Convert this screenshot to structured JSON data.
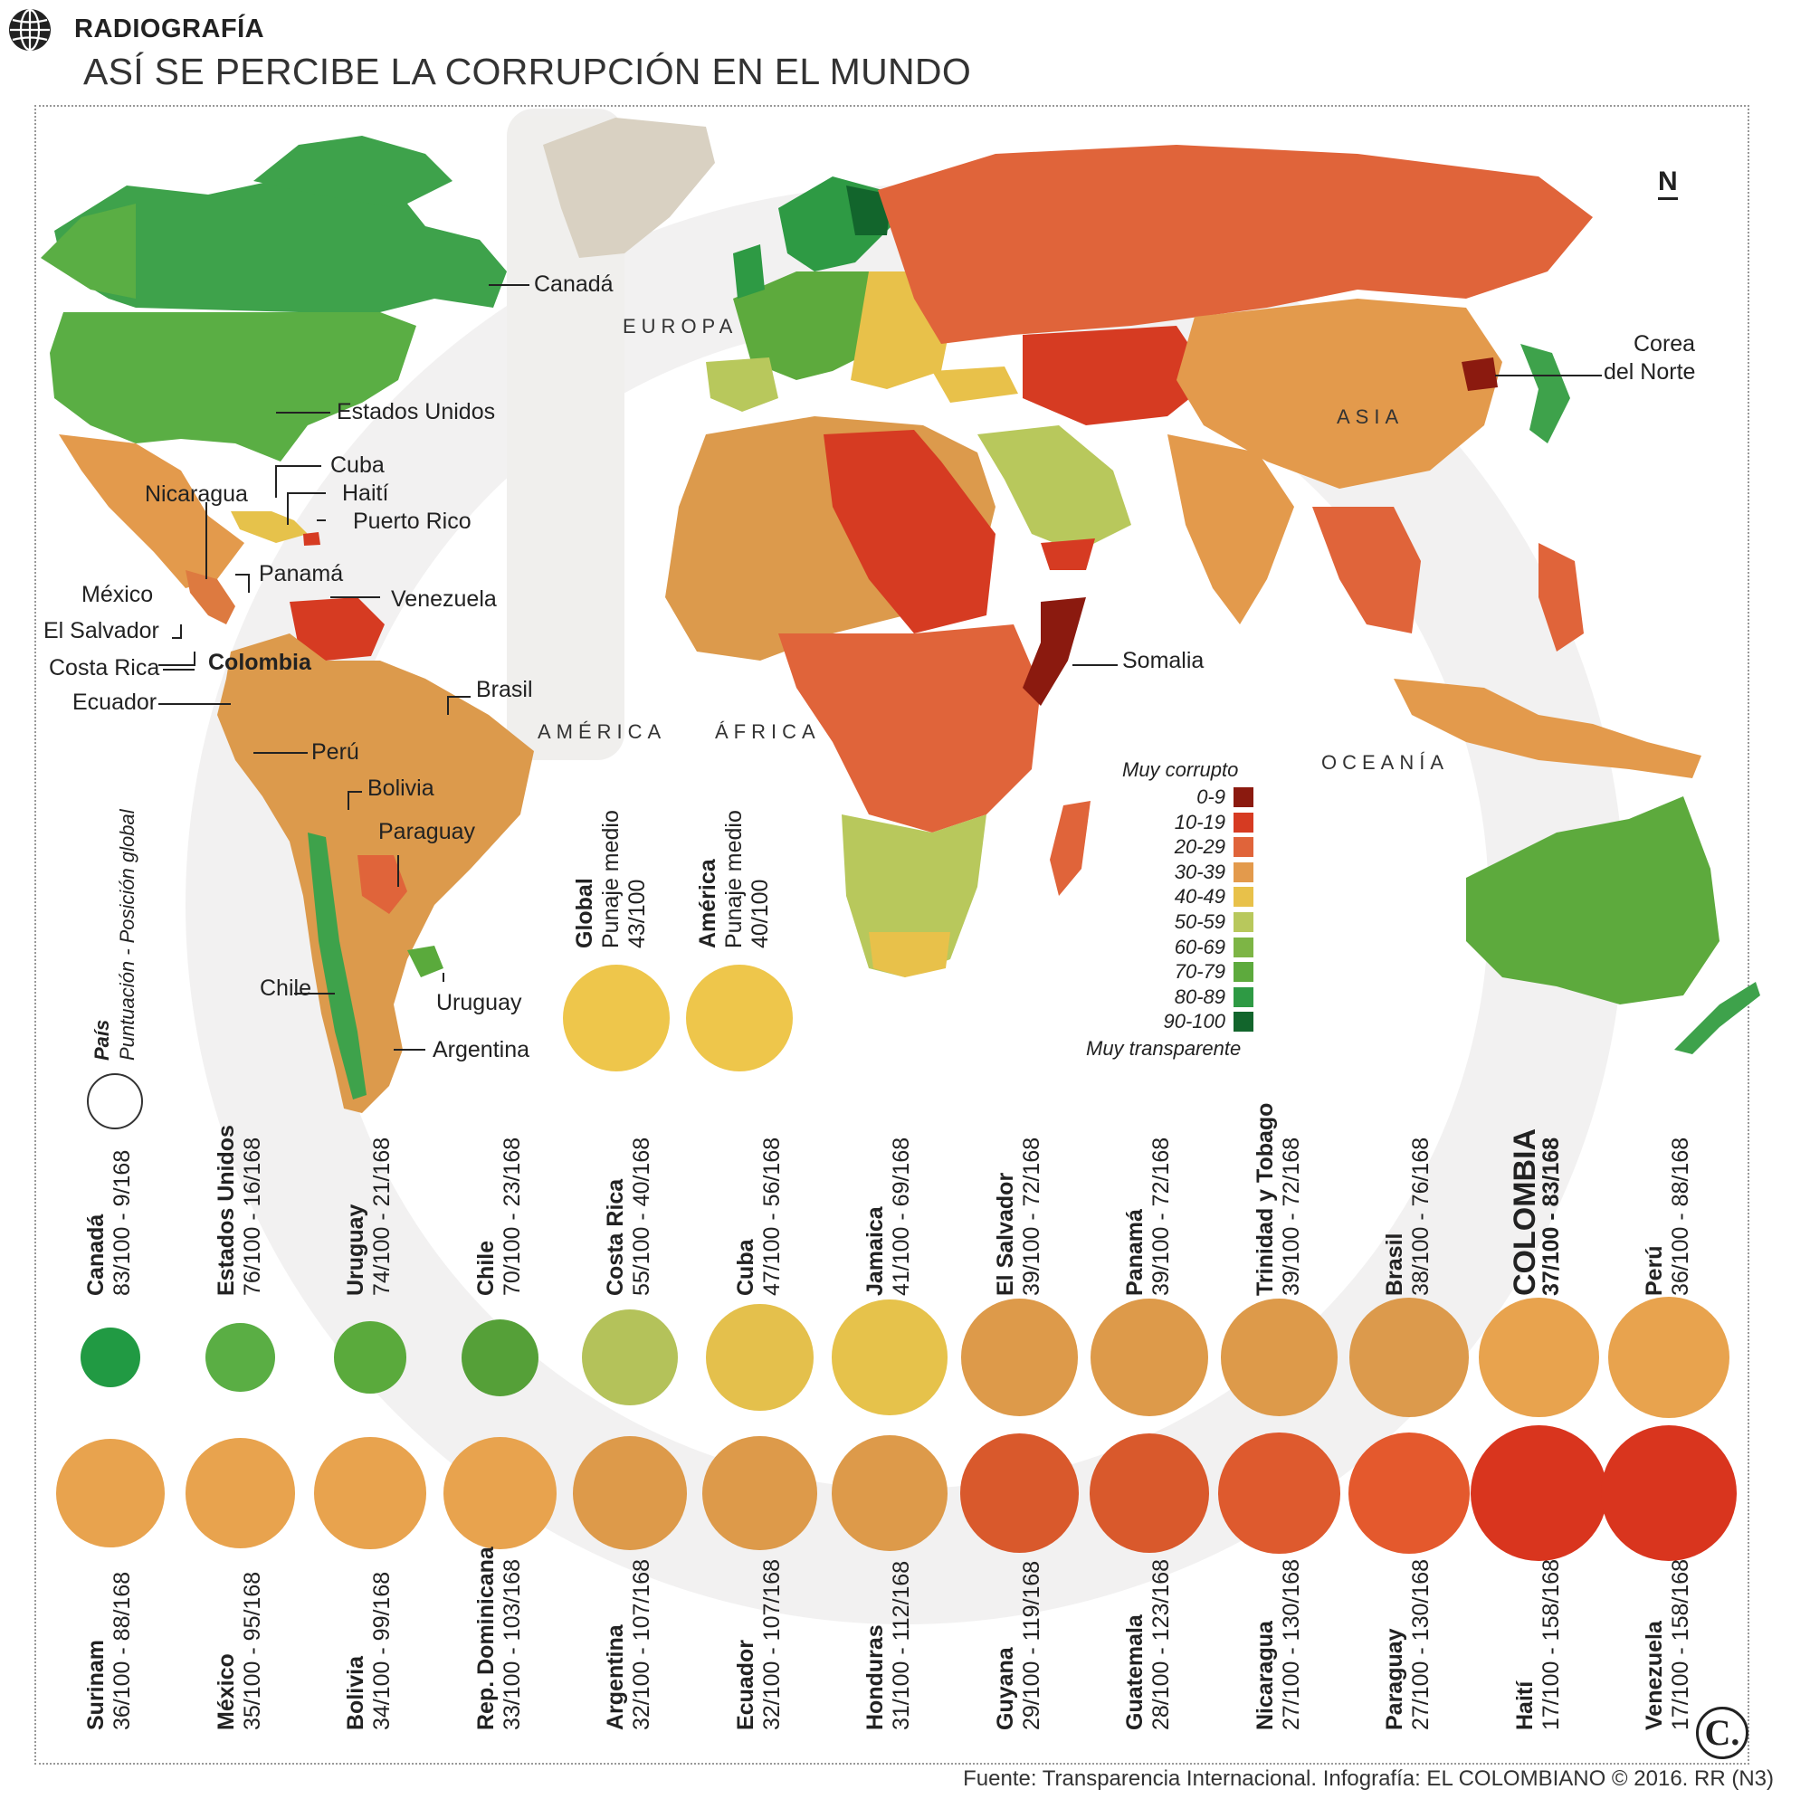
{
  "header": {
    "kicker": "RADIOGRAFÍA",
    "title": "ASÍ SE PERCIBE LA CORRUPCIÓN EN EL MUNDO"
  },
  "north": "N",
  "continents": {
    "europa": "EUROPA",
    "asia": "ASIA",
    "america": "AMÉRICA",
    "africa": "ÁFRICA",
    "oceania": "OCEANÍA"
  },
  "map_labels": {
    "canada": "Canadá",
    "usa": "Estados Unidos",
    "cuba": "Cuba",
    "haiti": "Haití",
    "puerto_rico": "Puerto Rico",
    "nicaragua": "Nicaragua",
    "mexico": "México",
    "panama": "Panamá",
    "venezuela": "Venezuela",
    "el_salvador": "El Salvador",
    "costa_rica": "Costa Rica",
    "colombia": "Colombia",
    "ecuador": "Ecuador",
    "brasil": "Brasil",
    "peru": "Perú",
    "bolivia": "Bolivia",
    "paraguay": "Paraguay",
    "chile": "Chile",
    "uruguay": "Uruguay",
    "argentina": "Argentina",
    "somalia": "Somalia",
    "corea_1": "Corea",
    "corea_2": "del Norte"
  },
  "legend": {
    "top": "Muy corrupto",
    "bottom": "Muy transparente",
    "items": [
      {
        "range": "0-9",
        "color": "#8b1a0f"
      },
      {
        "range": "10-19",
        "color": "#d63b22"
      },
      {
        "range": "20-29",
        "color": "#e0643a"
      },
      {
        "range": "30-39",
        "color": "#e39a4c"
      },
      {
        "range": "40-49",
        "color": "#e8c14a"
      },
      {
        "range": "50-59",
        "color": "#b8c85c"
      },
      {
        "range": "60-69",
        "color": "#7db545"
      },
      {
        "range": "70-79",
        "color": "#5daa3d"
      },
      {
        "range": "80-89",
        "color": "#2e9a44"
      },
      {
        "range": "90-100",
        "color": "#12652c"
      }
    ]
  },
  "key": {
    "country": "País",
    "detail": "Puntuación - Posición global"
  },
  "averages": [
    {
      "name": "Global",
      "label": "Punaje medio",
      "value": "43/100",
      "color": "#eec64b"
    },
    {
      "name": "América",
      "label": "Punaje medio",
      "value": "40/100",
      "color": "#eec64b"
    }
  ],
  "top_row": [
    {
      "name": "Canadá",
      "detail": "83/100 - 9/168",
      "score": 83,
      "color": "#219a43"
    },
    {
      "name": "Estados Unidos",
      "detail": "76/100 - 16/168",
      "score": 76,
      "color": "#5aae44"
    },
    {
      "name": "Uruguay",
      "detail": "74/100 - 21/168",
      "score": 74,
      "color": "#5aaa3c"
    },
    {
      "name": "Chile",
      "detail": "70/100 - 23/168",
      "score": 70,
      "color": "#55a038"
    },
    {
      "name": "Costa Rica",
      "detail": "55/100 - 40/168",
      "score": 55,
      "color": "#b4c25a"
    },
    {
      "name": "Cuba",
      "detail": "47/100 - 56/168",
      "score": 47,
      "color": "#e4c04c"
    },
    {
      "name": "Jamaica",
      "detail": "41/100 - 69/168",
      "score": 41,
      "color": "#e6c24b"
    },
    {
      "name": "El Salvador",
      "detail": "39/100 - 72/168",
      "score": 39,
      "color": "#dd9a4a"
    },
    {
      "name": "Panamá",
      "detail": "39/100 - 72/168",
      "score": 39,
      "color": "#dd9a4a"
    },
    {
      "name": "Trinidad y Tobago",
      "detail": "39/100 - 72/168",
      "score": 39,
      "color": "#dd9a4a"
    },
    {
      "name": "Brasil",
      "detail": "38/100 - 76/168",
      "score": 38,
      "color": "#dc9a4c"
    },
    {
      "name": "COLOMBIA",
      "detail": "37/100 - 83/168",
      "score": 37,
      "color": "#e8a34e"
    },
    {
      "name": "Perú",
      "detail": "36/100 - 88/168",
      "score": 36,
      "color": "#e8a34e"
    }
  ],
  "bottom_row": [
    {
      "name": "Surinam",
      "detail": "36/100 - 88/168",
      "score": 36,
      "color": "#e8a34e"
    },
    {
      "name": "México",
      "detail": "35/100 - 95/168",
      "score": 35,
      "color": "#e8a34e"
    },
    {
      "name": "Bolivia",
      "detail": "34/100 - 99/168",
      "score": 34,
      "color": "#e8a34e"
    },
    {
      "name": "Rep. Dominicana",
      "detail": "33/100 - 103/168",
      "score": 33,
      "color": "#e8a34e"
    },
    {
      "name": "Argentina",
      "detail": "32/100 - 107/168",
      "score": 32,
      "color": "#dd9a4a"
    },
    {
      "name": "Ecuador",
      "detail": "32/100 - 107/168",
      "score": 32,
      "color": "#dd9a4a"
    },
    {
      "name": "Honduras",
      "detail": "31/100 - 112/168",
      "score": 31,
      "color": "#dd9a4a"
    },
    {
      "name": "Guyana",
      "detail": "29/100 - 119/168",
      "score": 29,
      "color": "#d9592c"
    },
    {
      "name": "Guatemala",
      "detail": "28/100 - 123/168",
      "score": 28,
      "color": "#d9592c"
    },
    {
      "name": "Nicaragua",
      "detail": "27/100 - 130/168",
      "score": 27,
      "color": "#de5a2e"
    },
    {
      "name": "Paraguay",
      "detail": "27/100 - 130/168",
      "score": 27,
      "color": "#e4592d"
    },
    {
      "name": "Haití",
      "detail": "17/100 - 158/168",
      "score": 17,
      "color": "#d9351e"
    },
    {
      "name": "Venezuela",
      "detail": "17/100 - 158/168",
      "score": 17,
      "color": "#d9351e"
    }
  ],
  "source": "Fuente: Transparencia Internacional. Infografía: EL COLOMBIANO © 2016. RR (N3)",
  "logo": "C."
}
